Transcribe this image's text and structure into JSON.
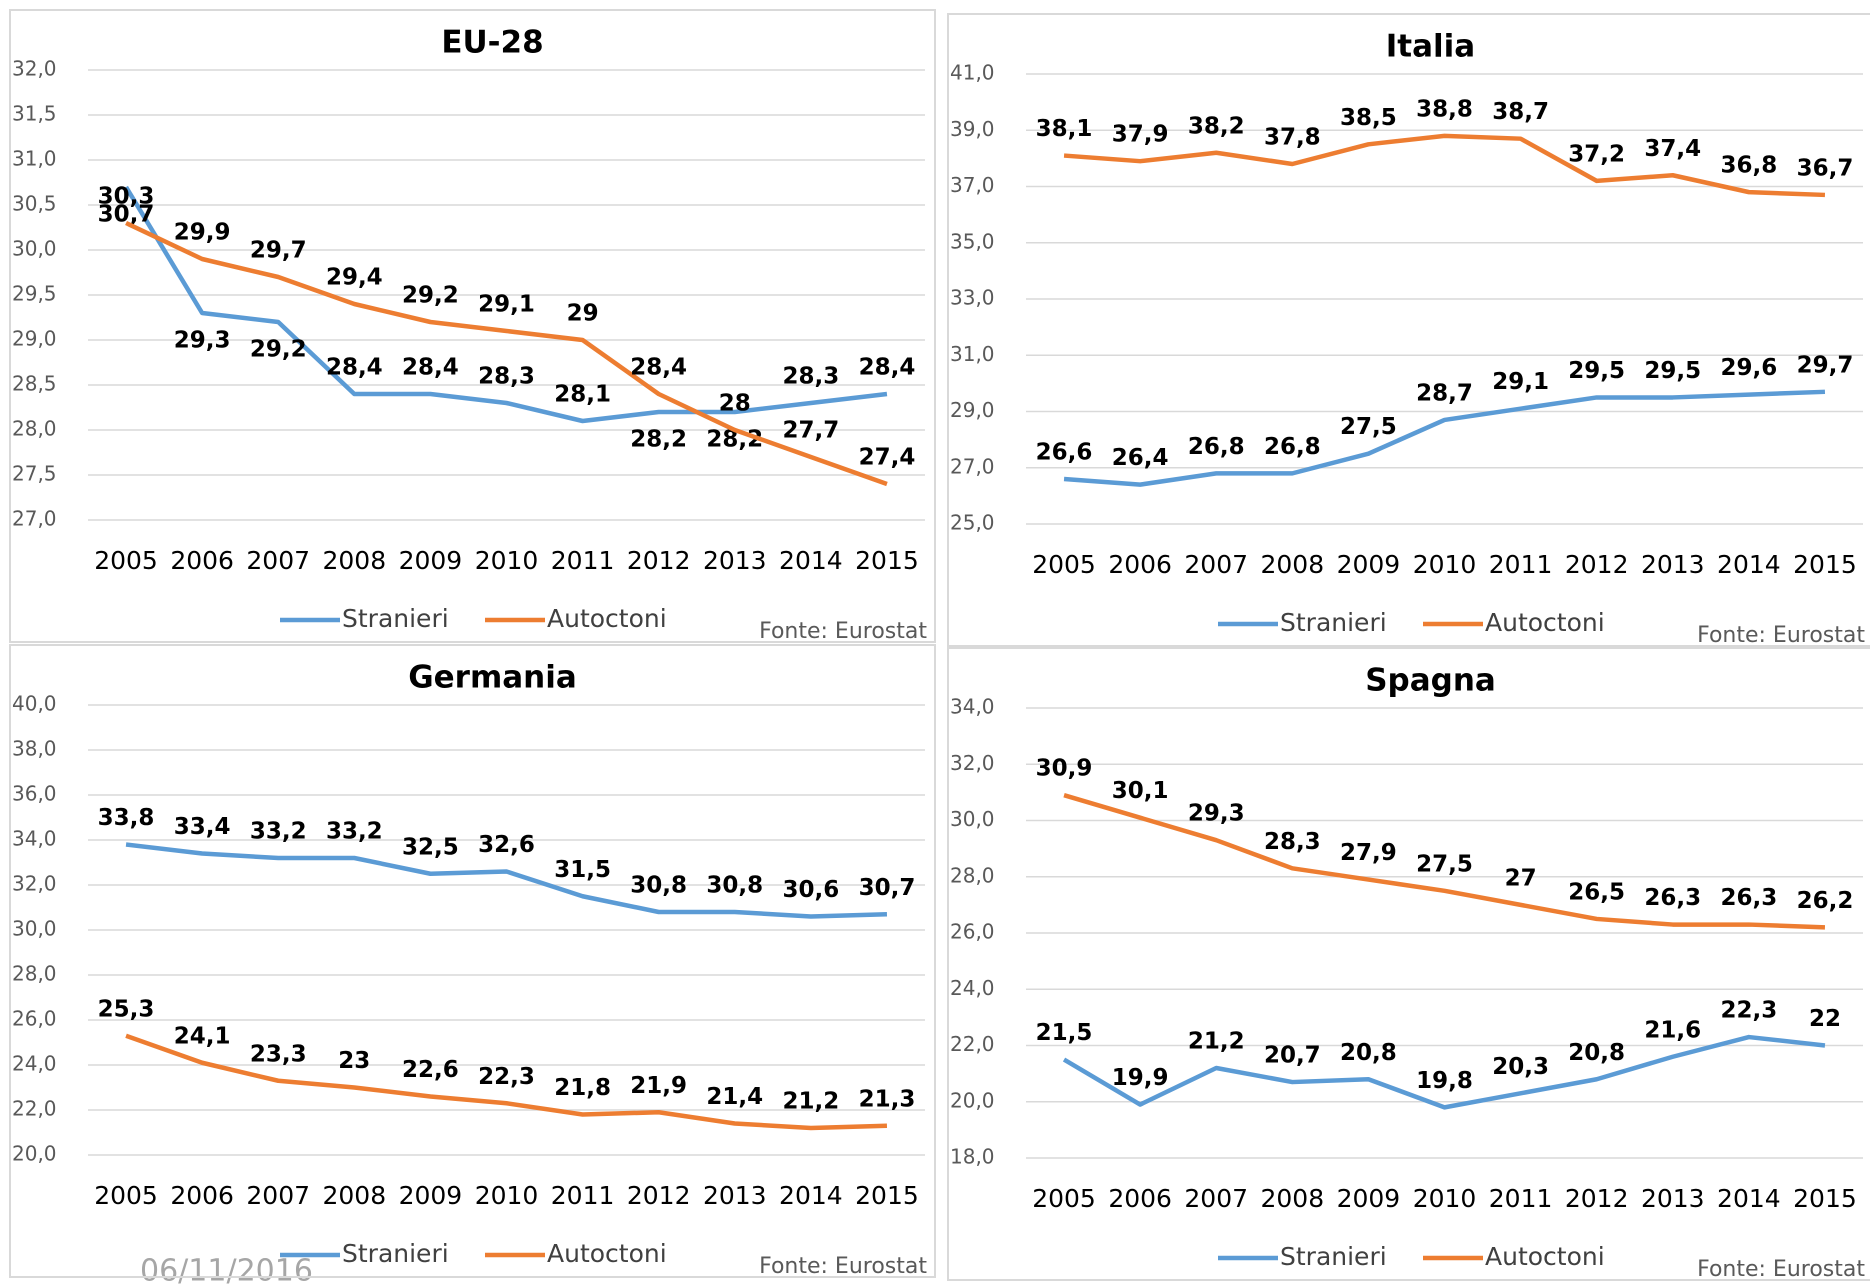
{
  "date": "06/11/2016",
  "chart_data": [
    {
      "type": "line",
      "title": "EU-28",
      "source": "Fonte: Eurostat",
      "legend": "bottom",
      "grid": true,
      "categories": [
        "2005",
        "2006",
        "2007",
        "2008",
        "2009",
        "2010",
        "2011",
        "2012",
        "2013",
        "2014",
        "2015"
      ],
      "ylim": [
        27,
        32
      ],
      "yticks": [
        {
          "value": 27,
          "label": "27,0"
        },
        {
          "value": 27.5,
          "label": "27,5"
        },
        {
          "value": 28,
          "label": "28,0"
        },
        {
          "value": 28.5,
          "label": "28,5"
        },
        {
          "value": 29,
          "label": "29,0"
        },
        {
          "value": 29.5,
          "label": "29,5"
        },
        {
          "value": 30,
          "label": "30,0"
        },
        {
          "value": 30.5,
          "label": "30,5"
        },
        {
          "value": 31,
          "label": "31,0"
        },
        {
          "value": 31.5,
          "label": "31,5"
        },
        {
          "value": 32,
          "label": "32,0"
        }
      ],
      "series": [
        {
          "name": "Stranieri",
          "color": "#5b9bd5",
          "values": [
            30.7,
            29.3,
            29.2,
            28.4,
            28.4,
            28.3,
            28.1,
            28.2,
            28.2,
            28.3,
            28.4
          ],
          "value_labels": [
            "30,7",
            "29,3",
            "29,2",
            "28,4",
            "28,4",
            "28,3",
            "28,1",
            "28,2",
            "28,2",
            "28,3",
            "28,4"
          ]
        },
        {
          "name": "Autoctoni",
          "color": "#ed7d31",
          "values": [
            30.3,
            29.9,
            29.7,
            29.4,
            29.2,
            29.1,
            29,
            28.4,
            28,
            27.7,
            27.4
          ],
          "value_labels": [
            "30,3",
            "29,9",
            "29,7",
            "29,4",
            "29,2",
            "29,1",
            "29",
            "28,4",
            "28",
            "27,7",
            "27,4"
          ]
        }
      ]
    },
    {
      "type": "line",
      "title": "Italia",
      "source": "Fonte: Eurostat",
      "legend": "bottom",
      "grid": true,
      "categories": [
        "2005",
        "2006",
        "2007",
        "2008",
        "2009",
        "2010",
        "2011",
        "2012",
        "2013",
        "2014",
        "2015"
      ],
      "ylim": [
        25,
        41
      ],
      "yticks": [
        {
          "value": 25,
          "label": "25,0"
        },
        {
          "value": 27,
          "label": "27,0"
        },
        {
          "value": 29,
          "label": "29,0"
        },
        {
          "value": 31,
          "label": "31,0"
        },
        {
          "value": 33,
          "label": "33,0"
        },
        {
          "value": 35,
          "label": "35,0"
        },
        {
          "value": 37,
          "label": "37,0"
        },
        {
          "value": 39,
          "label": "39,0"
        },
        {
          "value": 41,
          "label": "41,0"
        }
      ],
      "series": [
        {
          "name": "Stranieri",
          "color": "#5b9bd5",
          "values": [
            26.6,
            26.4,
            26.8,
            26.8,
            27.5,
            28.7,
            29.1,
            29.5,
            29.5,
            29.6,
            29.7
          ],
          "value_labels": [
            "26,6",
            "26,4",
            "26,8",
            "26,8",
            "27,5",
            "28,7",
            "29,1",
            "29,5",
            "29,5",
            "29,6",
            "29,7"
          ]
        },
        {
          "name": "Autoctoni",
          "color": "#ed7d31",
          "values": [
            38.1,
            37.9,
            38.2,
            37.8,
            38.5,
            38.8,
            38.7,
            37.2,
            37.4,
            36.8,
            36.7
          ],
          "value_labels": [
            "38,1",
            "37,9",
            "38,2",
            "37,8",
            "38,5",
            "38,8",
            "38,7",
            "37,2",
            "37,4",
            "36,8",
            "36,7"
          ]
        }
      ]
    },
    {
      "type": "line",
      "title": "Germania",
      "source": "Fonte: Eurostat",
      "legend": "bottom",
      "grid": true,
      "categories": [
        "2005",
        "2006",
        "2007",
        "2008",
        "2009",
        "2010",
        "2011",
        "2012",
        "2013",
        "2014",
        "2015"
      ],
      "ylim": [
        20,
        40
      ],
      "yticks": [
        {
          "value": 20,
          "label": "20,0"
        },
        {
          "value": 22,
          "label": "22,0"
        },
        {
          "value": 24,
          "label": "24,0"
        },
        {
          "value": 26,
          "label": "26,0"
        },
        {
          "value": 28,
          "label": "28,0"
        },
        {
          "value": 30,
          "label": "30,0"
        },
        {
          "value": 32,
          "label": "32,0"
        },
        {
          "value": 34,
          "label": "34,0"
        },
        {
          "value": 36,
          "label": "36,0"
        },
        {
          "value": 38,
          "label": "38,0"
        },
        {
          "value": 40,
          "label": "40,0"
        }
      ],
      "series": [
        {
          "name": "Stranieri",
          "color": "#5b9bd5",
          "values": [
            33.8,
            33.4,
            33.2,
            33.2,
            32.5,
            32.6,
            31.5,
            30.8,
            30.8,
            30.6,
            30.7
          ],
          "value_labels": [
            "33,8",
            "33,4",
            "33,2",
            "33,2",
            "32,5",
            "32,6",
            "31,5",
            "30,8",
            "30,8",
            "30,6",
            "30,7"
          ]
        },
        {
          "name": "Autoctoni",
          "color": "#ed7d31",
          "values": [
            25.3,
            24.1,
            23.3,
            23,
            22.6,
            22.3,
            21.8,
            21.9,
            21.4,
            21.2,
            21.3
          ],
          "value_labels": [
            "25,3",
            "24,1",
            "23,3",
            "23",
            "22,6",
            "22,3",
            "21,8",
            "21,9",
            "21,4",
            "21,2",
            "21,3"
          ]
        }
      ]
    },
    {
      "type": "line",
      "title": "Spagna",
      "source": "Fonte: Eurostat",
      "legend": "bottom",
      "grid": true,
      "categories": [
        "2005",
        "2006",
        "2007",
        "2008",
        "2009",
        "2010",
        "2011",
        "2012",
        "2013",
        "2014",
        "2015"
      ],
      "ylim": [
        18,
        34
      ],
      "yticks": [
        {
          "value": 18,
          "label": "18,0"
        },
        {
          "value": 20,
          "label": "20,0"
        },
        {
          "value": 22,
          "label": "22,0"
        },
        {
          "value": 24,
          "label": "24,0"
        },
        {
          "value": 26,
          "label": "26,0"
        },
        {
          "value": 28,
          "label": "28,0"
        },
        {
          "value": 30,
          "label": "30,0"
        },
        {
          "value": 32,
          "label": "32,0"
        },
        {
          "value": 34,
          "label": "34,0"
        }
      ],
      "series": [
        {
          "name": "Stranieri",
          "color": "#5b9bd5",
          "values": [
            21.5,
            19.9,
            21.2,
            20.7,
            20.8,
            19.8,
            20.3,
            20.8,
            21.6,
            22.3,
            22
          ],
          "value_labels": [
            "21,5",
            "19,9",
            "21,2",
            "20,7",
            "20,8",
            "19,8",
            "20,3",
            "20,8",
            "21,6",
            "22,3",
            "22"
          ]
        },
        {
          "name": "Autoctoni",
          "color": "#ed7d31",
          "values": [
            30.9,
            30.1,
            29.3,
            28.3,
            27.9,
            27.5,
            27,
            26.5,
            26.3,
            26.3,
            26.2
          ],
          "value_labels": [
            "30,9",
            "30,1",
            "29,3",
            "28,3",
            "27,9",
            "27,5",
            "27",
            "26,5",
            "26,3",
            "26,3",
            "26,2"
          ]
        }
      ]
    }
  ]
}
